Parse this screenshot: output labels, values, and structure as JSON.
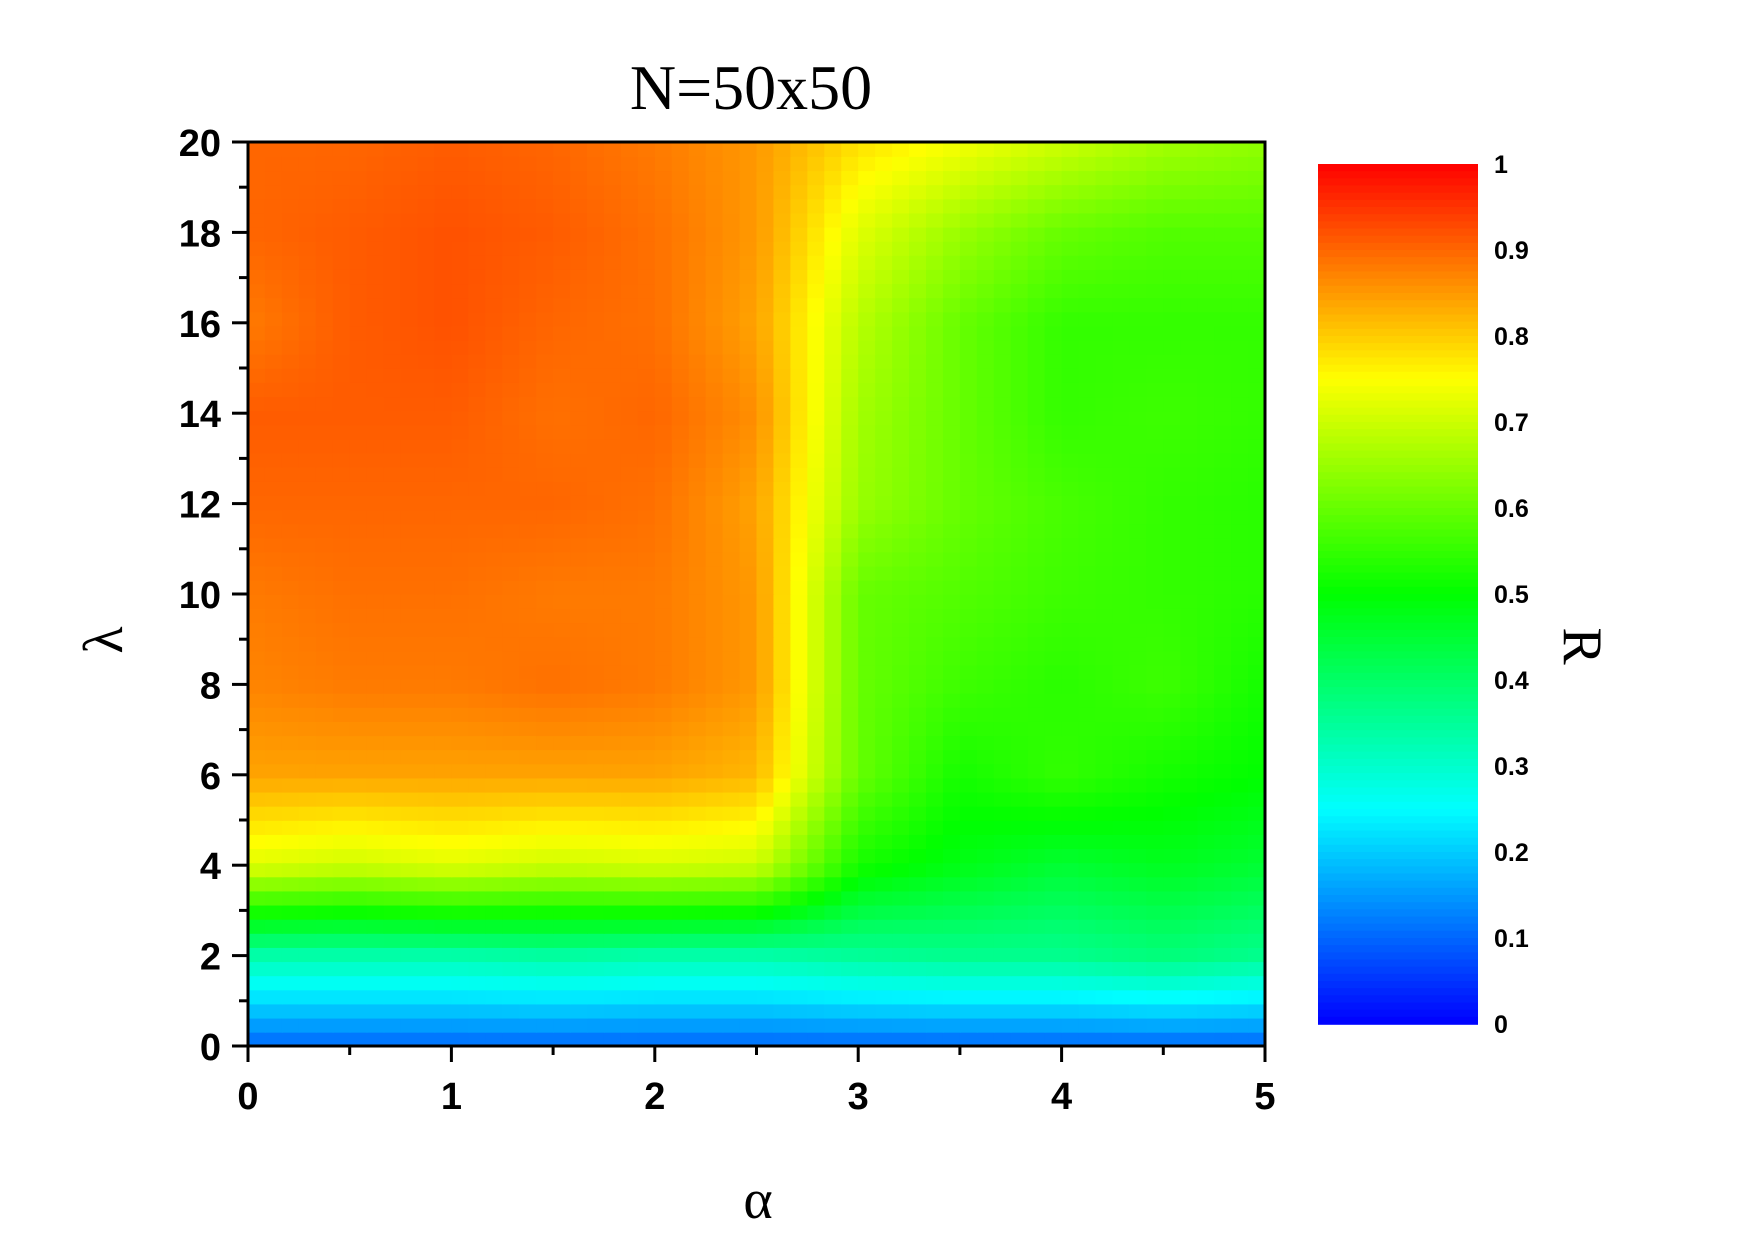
{
  "chart_data": {
    "type": "heatmap",
    "title": "N=50x50",
    "xlabel": "α",
    "ylabel": "λ",
    "xlim": [
      0,
      5
    ],
    "ylim": [
      0,
      20
    ],
    "x_ticks": [
      "0",
      "1",
      "2",
      "3",
      "4",
      "5"
    ],
    "y_ticks": [
      "0",
      "2",
      "4",
      "6",
      "8",
      "10",
      "12",
      "14",
      "16",
      "18",
      "20"
    ],
    "colorbar": {
      "label": "R",
      "range": [
        0,
        1
      ],
      "ticks": [
        "0",
        "0.1",
        "0.2",
        "0.3",
        "0.4",
        "0.5",
        "0.6",
        "0.7",
        "0.8",
        "0.9",
        "1"
      ],
      "colors": [
        "#0000ff",
        "#00ffff",
        "#00ff00",
        "#ffff00",
        "#ff0000"
      ]
    },
    "x": [
      0,
      0.5,
      1,
      1.5,
      2,
      2.5,
      3,
      3.5,
      4,
      4.5,
      5
    ],
    "y": [
      0,
      2,
      4,
      6,
      8,
      10,
      12,
      14,
      16,
      18,
      20
    ],
    "z": [
      [
        0.1,
        0.1,
        0.1,
        0.1,
        0.1,
        0.1,
        0.1,
        0.1,
        0.1,
        0.1,
        0.1
      ],
      [
        0.33,
        0.33,
        0.33,
        0.34,
        0.33,
        0.33,
        0.35,
        0.36,
        0.36,
        0.38,
        0.36
      ],
      [
        0.72,
        0.7,
        0.72,
        0.7,
        0.71,
        0.7,
        0.52,
        0.48,
        0.45,
        0.47,
        0.45
      ],
      [
        0.84,
        0.84,
        0.84,
        0.84,
        0.84,
        0.82,
        0.6,
        0.52,
        0.55,
        0.52,
        0.5
      ],
      [
        0.87,
        0.88,
        0.88,
        0.89,
        0.88,
        0.85,
        0.6,
        0.56,
        0.54,
        0.56,
        0.52
      ],
      [
        0.88,
        0.89,
        0.89,
        0.88,
        0.88,
        0.85,
        0.6,
        0.58,
        0.56,
        0.55,
        0.54
      ],
      [
        0.9,
        0.9,
        0.9,
        0.9,
        0.89,
        0.84,
        0.65,
        0.6,
        0.57,
        0.55,
        0.54
      ],
      [
        0.91,
        0.91,
        0.91,
        0.89,
        0.9,
        0.86,
        0.66,
        0.6,
        0.55,
        0.56,
        0.55
      ],
      [
        0.88,
        0.91,
        0.92,
        0.9,
        0.89,
        0.84,
        0.68,
        0.6,
        0.55,
        0.55,
        0.55
      ],
      [
        0.9,
        0.91,
        0.92,
        0.91,
        0.89,
        0.85,
        0.72,
        0.65,
        0.6,
        0.58,
        0.58
      ],
      [
        0.9,
        0.9,
        0.91,
        0.9,
        0.88,
        0.85,
        0.78,
        0.74,
        0.7,
        0.66,
        0.64
      ]
    ]
  }
}
